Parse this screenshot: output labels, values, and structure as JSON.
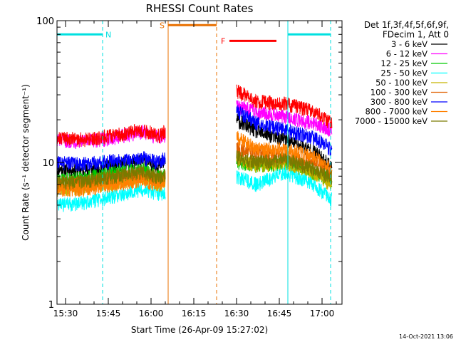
{
  "chart_data": {
    "type": "line",
    "title": "RHESSI Count Rates",
    "xlabel": "Start Time (26-Apr-09 15:27:02)",
    "ylabel": "Count Rate (s⁻¹ detector segment⁻¹)",
    "yscale": "log",
    "ylim": [
      1,
      100
    ],
    "xlim_minutes": [
      0,
      100
    ],
    "x_tick_labels": [
      "15:30",
      "15:45",
      "16:00",
      "16:15",
      "16:30",
      "16:45",
      "17:00"
    ],
    "x_tick_minutes": [
      3,
      18,
      33,
      48,
      63,
      78,
      93
    ],
    "y_tick_labels": [
      "1",
      "10",
      "100"
    ],
    "y_tick_values": [
      1,
      10,
      100
    ],
    "grid": false,
    "legend_position": "right",
    "legend_header": [
      "Det 1f,3f,4f,5f,6f,9f,",
      "FDecim 1, Att 0"
    ],
    "data_gap_minutes": [
      38,
      63
    ],
    "series": [
      {
        "name": "3 - 6 keV",
        "color": "#000000",
        "x": [
          0,
          10,
          20,
          30,
          36,
          63,
          70,
          80,
          90,
          96
        ],
        "values": [
          9.0,
          8.8,
          9.6,
          10.2,
          9.5,
          20,
          16.5,
          14.5,
          12,
          9.5
        ]
      },
      {
        "name": "6 - 12 keV",
        "color": "#ff00ff",
        "x": [
          0,
          10,
          20,
          30,
          36,
          63,
          70,
          80,
          90,
          96
        ],
        "values": [
          14.5,
          14.0,
          15.0,
          16.5,
          15.0,
          25,
          23,
          21,
          19,
          17
        ]
      },
      {
        "name": "12 - 25 keV",
        "color": "#00cc00",
        "x": [
          0,
          10,
          20,
          30,
          36,
          63,
          70,
          80,
          90,
          96
        ],
        "values": [
          7.5,
          7.8,
          8.5,
          9.0,
          8.0,
          10.0,
          9.5,
          10.0,
          8.5,
          7.5
        ]
      },
      {
        "name": "25 - 50 keV",
        "color": "#00ffff",
        "x": [
          0,
          10,
          20,
          30,
          36,
          63,
          70,
          80,
          90,
          96
        ],
        "values": [
          5.0,
          5.2,
          5.8,
          6.5,
          6.0,
          8.0,
          7.0,
          8.5,
          7.0,
          5.5
        ]
      },
      {
        "name": "50 - 100 keV",
        "color": "#c8b400",
        "x": [
          0,
          10,
          20,
          30,
          36,
          63,
          70,
          80,
          90,
          96
        ],
        "values": [
          6.5,
          6.6,
          7.2,
          7.8,
          7.0,
          10.5,
          9.5,
          10.0,
          8.5,
          7.0
        ]
      },
      {
        "name": "100 - 300 keV",
        "color": "#e06000",
        "x": [
          0,
          10,
          20,
          30,
          36,
          63,
          70,
          80,
          90,
          96
        ],
        "values": [
          7.0,
          7.2,
          7.8,
          8.2,
          7.5,
          12.5,
          11.5,
          11.0,
          10.0,
          8.5
        ]
      },
      {
        "name": "300 - 800 keV",
        "color": "#0000ff",
        "x": [
          0,
          10,
          20,
          30,
          36,
          63,
          70,
          80,
          90,
          96
        ],
        "values": [
          10.0,
          9.8,
          10.3,
          10.8,
          10.0,
          23,
          19,
          17,
          15,
          12.5
        ]
      },
      {
        "name": "800 - 7000 keV",
        "color": "#ff8000",
        "x": [
          0,
          10,
          20,
          30,
          36,
          63,
          70,
          80,
          90,
          96
        ],
        "values": [
          6.5,
          6.5,
          7.0,
          7.5,
          7.0,
          15,
          12.5,
          12.5,
          11,
          9.0
        ]
      },
      {
        "name": "7000 - 15000 keV",
        "color": "#7a7a00",
        "x": [
          0,
          10,
          20,
          30,
          36,
          63,
          70,
          80,
          90,
          96
        ],
        "values": [
          7.2,
          7.4,
          8.0,
          8.6,
          7.8,
          11.0,
          10.0,
          10.5,
          9.0,
          7.8
        ]
      },
      {
        "name": "",
        "color": "#ff0000",
        "x": [
          0,
          10,
          20,
          30,
          36,
          63,
          70,
          80,
          90,
          96
        ],
        "values": [
          15,
          14.5,
          15.5,
          17,
          15.5,
          32,
          27,
          26,
          23,
          19
        ]
      }
    ],
    "annotations": [
      {
        "label": "N",
        "color": "#00e0e0",
        "bar_minutes": [
          0,
          16
        ],
        "bar_y": 80,
        "solid_line_minute": 0,
        "dashed_line_minute": 16,
        "label_minute": 17
      },
      {
        "label": "S",
        "color": "#e87000",
        "bar_minutes": [
          39,
          56
        ],
        "bar_y": 93,
        "solid_line_minute": 39,
        "dashed_line_minute": 56,
        "label_minute": 36
      },
      {
        "label": "F",
        "color": "#ff0000",
        "bar_minutes": [
          60.5,
          77
        ],
        "bar_y": 72,
        "label_minute": 57.5
      },
      {
        "label": "",
        "color": "#00e0e0",
        "bar_minutes": [
          81,
          96
        ],
        "bar_y": 80,
        "solid_line_minute": 81,
        "dashed_line_minute": 96
      }
    ]
  },
  "footer": {
    "timestamp": "14-Oct-2021 13:06"
  }
}
